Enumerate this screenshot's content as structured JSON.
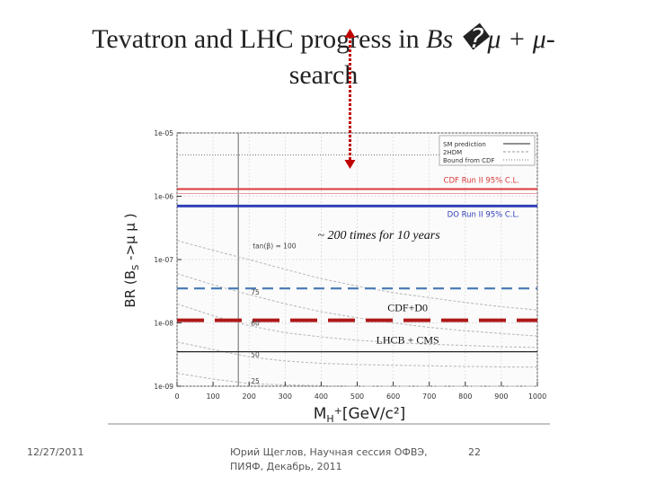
{
  "slide": {
    "title_prefix": "Tevatron and LHC progress in ",
    "title_italic": "Bs �μ + μ-",
    "title_line2": "search"
  },
  "footer": {
    "date": "12/27/2011",
    "author_line1": "Юрий Щеглов, Научная сессия ОФВЭ,",
    "author_line2": "ПИЯФ, Декабрь, 2011",
    "page": "22"
  },
  "colors": {
    "cdf": "#d93a3a",
    "d0": "#3240b8",
    "combined": "#4e7fb8",
    "lhc": "#b01818",
    "arrow": "#c00000",
    "grid": "#9a9a9a"
  },
  "chart_data": {
    "type": "line",
    "xlabel": "M",
    "xlabel_sub": "H",
    "xlabel_sup": "+",
    "xlabel_unit": "[GeV/c²]",
    "ylabel": "BR (B",
    "ylabel_sub": "S",
    "ylabel_rest": " ->μ μ )",
    "xlim": [
      0,
      1000
    ],
    "ylim_exp": [
      -9,
      -5
    ],
    "x_ticks": [
      0,
      100,
      200,
      300,
      400,
      500,
      600,
      700,
      800,
      900,
      1000
    ],
    "x_tick_labels": [
      "0",
      "100",
      "200",
      "300",
      "400",
      "500",
      "600",
      "700",
      "800",
      "900",
      "1000"
    ],
    "y_ticks_exp": [
      -5,
      -6,
      -7,
      -8,
      -9
    ],
    "y_tick_labels": [
      "1e-05",
      "1e-06",
      "1e-07",
      "1e-08",
      "1e-09"
    ],
    "vertical_line_x": 170,
    "legend": {
      "placement": "top-right",
      "entries": [
        "SM prediction",
        "2HDM",
        "Bound from CDF"
      ]
    },
    "reference_lines": [
      {
        "name": "CDF Run II 95% C.L.",
        "y": 1.3e-06,
        "color": "#d93a3a",
        "style": "solid"
      },
      {
        "name": "DO Run II 95% C.L.",
        "y": 7e-07,
        "color": "#3240b8",
        "style": "solid"
      },
      {
        "name": "CDF+D0",
        "y": 3.5e-08,
        "color": "#4e7fb8",
        "style": "dashed"
      },
      {
        "name": "LHCB + CMS",
        "y": 1.1e-08,
        "color": "#b01818",
        "style": "dashed"
      }
    ],
    "sm_prediction": 3.5e-09,
    "cdf_bound": 4.5e-06,
    "curve_labels": [
      {
        "text": "tan(β) = 100",
        "x": 210,
        "y": 1.5e-07
      },
      {
        "text": "75",
        "x": 205,
        "y": 2.8e-08
      },
      {
        "text": "60",
        "x": 205,
        "y": 9e-09
      },
      {
        "text": "50",
        "x": 205,
        "y": 2.9e-09
      },
      {
        "text": "25",
        "x": 205,
        "y": 1.1e-09
      }
    ],
    "curves": [
      {
        "name": "tan(β) = 100",
        "x": [
          0,
          100,
          200,
          300,
          400,
          500,
          600,
          700,
          800,
          900,
          1000
        ],
        "y": [
          2e-07,
          1.4e-07,
          1e-07,
          7e-08,
          5e-08,
          3.8e-08,
          3e-08,
          2.5e-08,
          2.1e-08,
          1.8e-08,
          1.6e-08
        ]
      },
      {
        "name": "75",
        "x": [
          0,
          100,
          200,
          300,
          400,
          500,
          600,
          700,
          800,
          900,
          1000
        ],
        "y": [
          6e-08,
          4e-08,
          2.8e-08,
          2e-08,
          1.5e-08,
          1.2e-08,
          1e-08,
          8.5e-09,
          7.5e-09,
          6.8e-09,
          6.2e-09
        ]
      },
      {
        "name": "60",
        "x": [
          0,
          100,
          200,
          300,
          400,
          500,
          600,
          700,
          800,
          900,
          1000
        ],
        "y": [
          2e-08,
          1.3e-08,
          9e-09,
          7e-09,
          6e-09,
          5.3e-09,
          4.9e-09,
          4.6e-09,
          4.4e-09,
          4.2e-09,
          4.1e-09
        ]
      },
      {
        "name": "50",
        "x": [
          0,
          100,
          200,
          300,
          400,
          500,
          600,
          700,
          800,
          900,
          1000
        ],
        "y": [
          5e-09,
          3.8e-09,
          2.9e-09,
          2.5e-09,
          2.3e-09,
          2.2e-09,
          2.15e-09,
          2.1e-09,
          2.05e-09,
          2.02e-09,
          2e-09
        ]
      },
      {
        "name": "25",
        "x": [
          0,
          100,
          200,
          300,
          400,
          500,
          600,
          700,
          800,
          900,
          1000
        ],
        "y": [
          1.6e-09,
          1.3e-09,
          1.1e-09,
          1.05e-09,
          1.02e-09,
          1e-09,
          1e-09,
          1e-09,
          1e-09,
          1e-09,
          1e-09
        ]
      }
    ],
    "annotations": [
      {
        "text": "~ 200 times for 10 years",
        "x": 560,
        "y": 2.5e-07
      },
      {
        "text": "CDF+D0",
        "x": 640,
        "y": 1.8e-08
      },
      {
        "text": "LHCB + CMS",
        "x": 640,
        "y": 5.6e-09
      }
    ],
    "arrow": {
      "x": 480,
      "y_from": 0.0001,
      "y_to": 1.2e-05
    }
  }
}
